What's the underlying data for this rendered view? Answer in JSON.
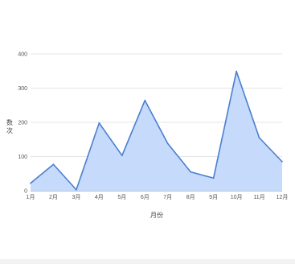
{
  "chart_data": {
    "type": "area",
    "title": "",
    "xlabel": "月份",
    "ylabel": "数次",
    "categories": [
      "1月",
      "2月",
      "3月",
      "4月",
      "5月",
      "6月",
      "7月",
      "8月",
      "9月",
      "10月",
      "11月",
      "12月"
    ],
    "series": [
      {
        "values": [
          22,
          77,
          3,
          198,
          103,
          264,
          138,
          55,
          37,
          349,
          155,
          85
        ]
      }
    ],
    "ylim": [
      0,
      400
    ],
    "yticks": [
      0,
      100,
      200,
      300,
      400
    ],
    "grid": true,
    "legend": "none",
    "colors": {
      "line": "#4a7fcf",
      "fill": "#c6dafb",
      "grid": "#dddddd",
      "baseline": "#888888"
    }
  }
}
